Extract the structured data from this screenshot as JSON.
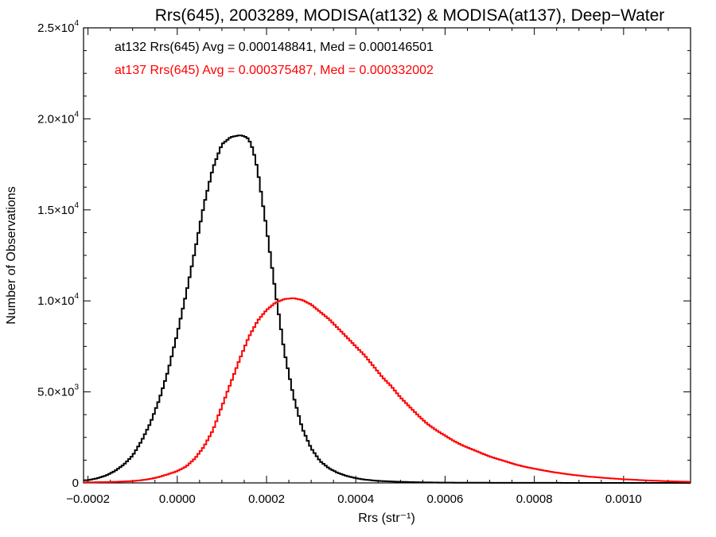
{
  "chart_data": {
    "type": "line",
    "style": "step-histogram",
    "title": "Rrs(645), 2003289, MODISA(at132) & MODISA(at137), Deep−Water",
    "xlabel": "Rrs (str⁻¹)",
    "ylabel": "Number of Observations",
    "xlim": [
      -0.00021,
      0.00115
    ],
    "ylim": [
      0,
      25000
    ],
    "grid": false,
    "legend_position": "top-left",
    "x_ticks": [
      {
        "value": -0.0002,
        "label": "−0.0002"
      },
      {
        "value": 0.0,
        "label": "0.0000"
      },
      {
        "value": 0.0002,
        "label": "0.0002"
      },
      {
        "value": 0.0004,
        "label": "0.0004"
      },
      {
        "value": 0.0006,
        "label": "0.0006"
      },
      {
        "value": 0.0008,
        "label": "0.0008"
      },
      {
        "value": 0.001,
        "label": "0.0010"
      }
    ],
    "y_ticks": [
      {
        "value": 0,
        "mantissa": "0",
        "exp": ""
      },
      {
        "value": 5000,
        "mantissa": "5.0×10",
        "exp": "3"
      },
      {
        "value": 10000,
        "mantissa": "1.0×10",
        "exp": "4"
      },
      {
        "value": 15000,
        "mantissa": "1.5×10",
        "exp": "4"
      },
      {
        "value": 20000,
        "mantissa": "2.0×10",
        "exp": "4"
      },
      {
        "value": 25000,
        "mantissa": "2.5×10",
        "exp": "4"
      }
    ],
    "series": [
      {
        "name": "at132",
        "legend_text": "at132 Rrs(645) Avg = 0.000148841, Med = 0.000146501",
        "color": "#000000",
        "x": [
          -0.0002,
          -0.00018,
          -0.00016,
          -0.00014,
          -0.00012,
          -0.0001,
          -8e-05,
          -6e-05,
          -4e-05,
          -2e-05,
          0.0,
          2e-05,
          4e-05,
          6e-05,
          8e-05,
          0.0001,
          0.00012,
          0.00014,
          0.00015,
          0.00016,
          0.00017,
          0.00018,
          0.0002,
          0.00022,
          0.00024,
          0.00026,
          0.00028,
          0.0003,
          0.00032,
          0.00034,
          0.00036,
          0.00038,
          0.0004,
          0.00042,
          0.00045,
          0.0005,
          0.00055,
          0.0006,
          0.0007,
          0.0008,
          0.0009,
          0.001,
          0.00115
        ],
        "values": [
          150,
          250,
          400,
          650,
          1000,
          1500,
          2300,
          3300,
          4600,
          6200,
          8200,
          10400,
          12800,
          15300,
          17300,
          18600,
          19000,
          19100,
          19050,
          18900,
          18300,
          17200,
          14000,
          10500,
          7200,
          4800,
          3000,
          1900,
          1200,
          800,
          550,
          380,
          260,
          180,
          110,
          60,
          30,
          15,
          8,
          4,
          2,
          1,
          0
        ]
      },
      {
        "name": "at137",
        "legend_text": "at137 Rrs(645) Avg = 0.000375487, Med = 0.000332002",
        "color": "#ff0000",
        "x": [
          -0.0002,
          -0.00015,
          -0.0001,
          -8e-05,
          -6e-05,
          -4e-05,
          -2e-05,
          0.0,
          2e-05,
          4e-05,
          6e-05,
          8e-05,
          0.0001,
          0.00012,
          0.00014,
          0.00016,
          0.00018,
          0.0002,
          0.00022,
          0.00024,
          0.00026,
          0.00028,
          0.0003,
          0.00032,
          0.00034,
          0.00036,
          0.00038,
          0.0004,
          0.00042,
          0.00044,
          0.00046,
          0.00048,
          0.0005,
          0.00052,
          0.00054,
          0.00056,
          0.00058,
          0.0006,
          0.00062,
          0.00064,
          0.00066,
          0.00068,
          0.0007,
          0.00072,
          0.00074,
          0.00076,
          0.00078,
          0.0008,
          0.00084,
          0.00088,
          0.00092,
          0.00096,
          0.001,
          0.00105,
          0.0011,
          0.00115
        ],
        "values": [
          30,
          50,
          100,
          150,
          220,
          330,
          480,
          650,
          900,
          1350,
          2000,
          2900,
          4200,
          5500,
          6800,
          8000,
          8900,
          9500,
          9900,
          10100,
          10150,
          10050,
          9800,
          9400,
          9000,
          8500,
          8000,
          7500,
          7000,
          6400,
          5800,
          5300,
          4700,
          4200,
          3700,
          3250,
          2900,
          2600,
          2300,
          2050,
          1850,
          1650,
          1450,
          1300,
          1150,
          1000,
          880,
          780,
          600,
          460,
          350,
          270,
          200,
          140,
          90,
          60
        ]
      }
    ]
  }
}
